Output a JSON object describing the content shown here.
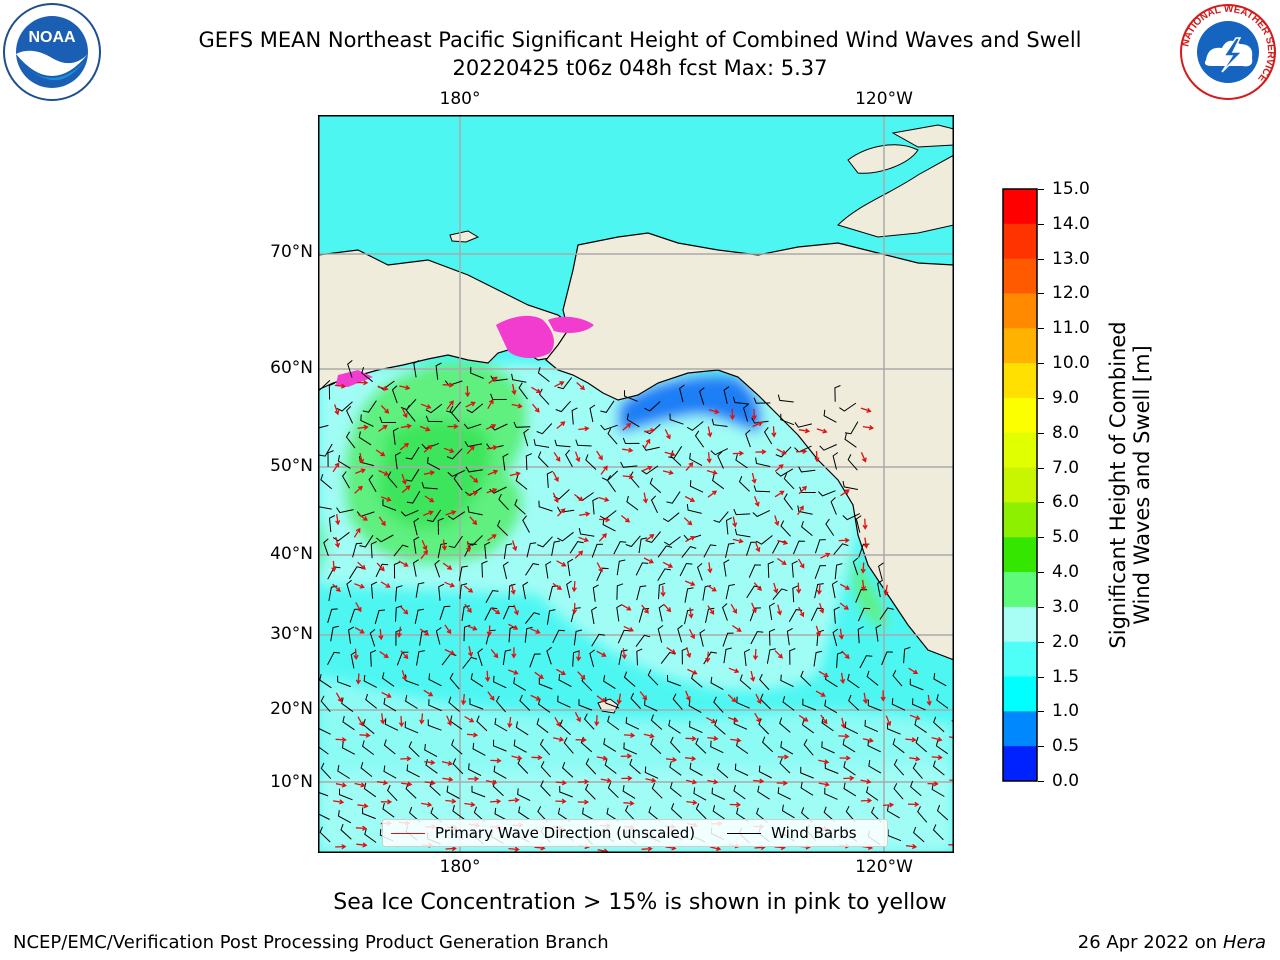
{
  "title": {
    "line1": "GEFS MEAN Northeast Pacific Significant Height of Combined Wind Waves and Swell",
    "line2": "20220425 t06z 048h fcst   Max: 5.37"
  },
  "logos": {
    "left": "noaa-logo",
    "left_text": "NOAA",
    "right": "nws-logo",
    "right_ring_text": "NATIONAL WEATHER SERVICE"
  },
  "map": {
    "lon_ticks": [
      "180°",
      "120°W"
    ],
    "lat_ticks": [
      "70°N",
      "60°N",
      "50°N",
      "40°N",
      "30°N",
      "20°N",
      "10°N"
    ],
    "land_color": "#efecdc",
    "ocean_colors": {
      "base": "#4ef6f2",
      "mid": "#a0fdf5",
      "high": "#5ef07f",
      "peak": "#27e53d",
      "low": "#1e7ff6",
      "ice": "#f23ccf"
    }
  },
  "legend": {
    "wave_direction": "Primary Wave Direction (unscaled)",
    "wind_barbs": "Wind Barbs",
    "wave_color": "#e01010",
    "barb_color": "#000000"
  },
  "colorbar": {
    "label_line1": "Significant Height of Combined",
    "label_line2": "Wind Waves and Swell [m]",
    "ticks": [
      "15.0",
      "14.0",
      "13.0",
      "12.0",
      "11.0",
      "10.0",
      "9.0",
      "8.0",
      "7.0",
      "6.0",
      "5.0",
      "4.0",
      "3.0",
      "2.0",
      "1.5",
      "1.0",
      "0.5",
      "0.0"
    ],
    "colors": [
      "#ff0000",
      "#ff3300",
      "#ff5a00",
      "#ff8a00",
      "#ffb300",
      "#ffe000",
      "#fbff00",
      "#e0ff00",
      "#c8f500",
      "#8cf000",
      "#34e600",
      "#5dfa7c",
      "#a8fdf5",
      "#4efff8",
      "#00ffff",
      "#0088ff",
      "#0022ff"
    ]
  },
  "footer": {
    "note": "Sea Ice Concentration > 15% is shown in pink to yellow",
    "left": "NCEP/EMC/Verification Post Processing Product Generation Branch",
    "date": "26 Apr 2022 on ",
    "machine": "Hera"
  }
}
